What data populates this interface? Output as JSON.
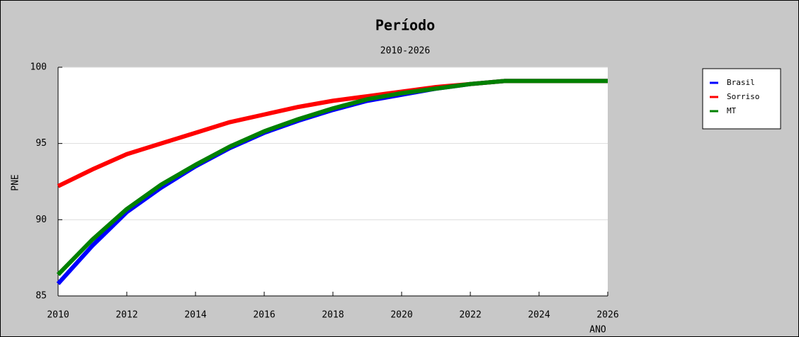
{
  "chart_data": {
    "type": "line",
    "title": "Período",
    "subtitle": "2010-2026",
    "y_label": "PNE",
    "x_label": "ANO",
    "x": [
      2010,
      2011,
      2012,
      2013,
      2014,
      2015,
      2016,
      2017,
      2018,
      2019,
      2020,
      2021,
      2022,
      2023,
      2024,
      2025,
      2026
    ],
    "series": [
      {
        "name": "Brasil",
        "color": "#0000ff",
        "values": [
          85.8,
          88.3,
          90.5,
          92.1,
          93.5,
          94.7,
          95.7,
          96.5,
          97.2,
          97.8,
          98.2,
          98.6,
          98.9,
          99.1,
          99.1,
          99.1,
          99.1
        ]
      },
      {
        "name": "Sorriso",
        "color": "#ff0000",
        "values": [
          92.2,
          93.3,
          94.3,
          95.0,
          95.7,
          96.4,
          96.9,
          97.4,
          97.8,
          98.1,
          98.4,
          98.7,
          98.9,
          99.1,
          99.1,
          99.1,
          99.1
        ]
      },
      {
        "name": "MT",
        "color": "#008000",
        "values": [
          86.4,
          88.7,
          90.7,
          92.3,
          93.6,
          94.8,
          95.8,
          96.6,
          97.3,
          97.9,
          98.3,
          98.6,
          98.9,
          99.1,
          99.1,
          99.1,
          99.1
        ]
      }
    ],
    "xlim": [
      2010,
      2026
    ],
    "xticks": [
      2010,
      2012,
      2014,
      2016,
      2018,
      2020,
      2022,
      2024,
      2026
    ],
    "ylim": [
      85,
      100
    ],
    "yticks": [
      85,
      90,
      95,
      100
    ],
    "grid": true,
    "legend": "upper right"
  }
}
